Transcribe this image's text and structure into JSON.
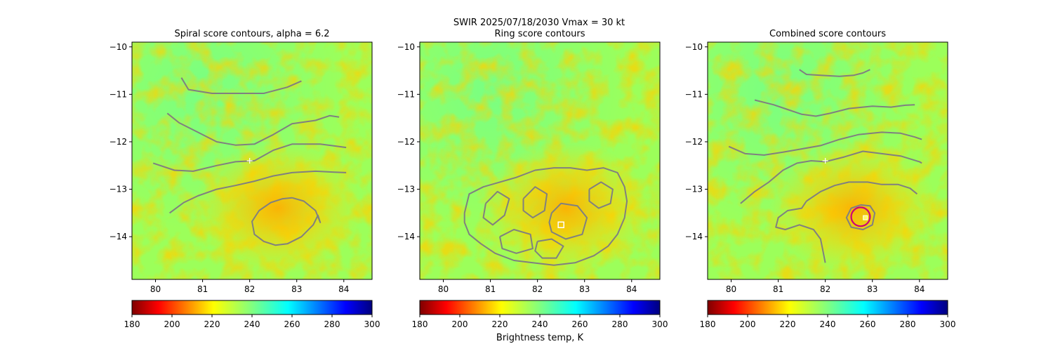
{
  "figure": {
    "suptitle_line1": "SWIR  2025/07/18/2030    Vmax = 30 kt",
    "colorbar_label": "Brightness temp, K"
  },
  "colors": {
    "contour": "#808080",
    "marker_white": "#ffffff",
    "ring_magenta": "#cc0077",
    "background_field": "#9cff5a"
  },
  "chart_data": [
    {
      "type": "heatmap",
      "title": "Spiral score contours, alpha =  6.2",
      "xlim": [
        79.5,
        84.6
      ],
      "ylim": [
        -14.9,
        -9.9
      ],
      "xticks": [
        80,
        81,
        82,
        83,
        84
      ],
      "yticks": [
        -10,
        -11,
        -12,
        -13,
        -14
      ],
      "colorbar": {
        "min": 180,
        "max": 300,
        "ticks": [
          180,
          200,
          220,
          240,
          260,
          280,
          300
        ],
        "colormap": "jet_r"
      },
      "center_marker": {
        "x": 82.0,
        "y": -12.4,
        "symbol": "+"
      },
      "contours": [
        [
          [
            80.55,
            -10.65
          ],
          [
            80.7,
            -10.9
          ],
          [
            81.2,
            -10.98
          ],
          [
            81.8,
            -10.98
          ],
          [
            82.3,
            -10.98
          ],
          [
            82.8,
            -10.85
          ],
          [
            83.1,
            -10.72
          ]
        ],
        [
          [
            80.25,
            -11.4
          ],
          [
            80.5,
            -11.6
          ],
          [
            80.9,
            -11.8
          ],
          [
            81.3,
            -12.0
          ],
          [
            81.7,
            -12.07
          ],
          [
            82.1,
            -12.05
          ],
          [
            82.5,
            -11.85
          ],
          [
            82.9,
            -11.62
          ],
          [
            83.4,
            -11.55
          ],
          [
            83.7,
            -11.45
          ],
          [
            83.9,
            -11.48
          ]
        ],
        [
          [
            79.95,
            -12.45
          ],
          [
            80.4,
            -12.6
          ],
          [
            80.8,
            -12.62
          ],
          [
            81.3,
            -12.5
          ],
          [
            81.7,
            -12.42
          ],
          [
            82.1,
            -12.4
          ],
          [
            82.5,
            -12.18
          ],
          [
            82.9,
            -12.05
          ],
          [
            83.5,
            -12.05
          ],
          [
            83.9,
            -12.1
          ],
          [
            84.05,
            -12.12
          ]
        ],
        [
          [
            80.3,
            -13.5
          ],
          [
            80.6,
            -13.28
          ],
          [
            80.9,
            -13.14
          ],
          [
            81.3,
            -13.0
          ],
          [
            81.7,
            -12.92
          ],
          [
            82.1,
            -12.83
          ],
          [
            82.5,
            -12.72
          ],
          [
            82.9,
            -12.65
          ],
          [
            83.4,
            -12.62
          ],
          [
            83.8,
            -12.64
          ],
          [
            84.05,
            -12.65
          ]
        ],
        [
          [
            82.9,
            -13.18
          ],
          [
            82.7,
            -13.2
          ],
          [
            82.45,
            -13.28
          ],
          [
            82.2,
            -13.45
          ],
          [
            82.05,
            -13.68
          ],
          [
            82.1,
            -13.95
          ],
          [
            82.3,
            -14.1
          ],
          [
            82.55,
            -14.18
          ],
          [
            82.8,
            -14.15
          ],
          [
            83.1,
            -14.0
          ],
          [
            83.35,
            -13.75
          ],
          [
            83.45,
            -13.55
          ],
          [
            83.5,
            -13.7
          ],
          [
            83.4,
            -13.45
          ],
          [
            83.15,
            -13.25
          ],
          [
            82.9,
            -13.18
          ]
        ]
      ]
    },
    {
      "type": "heatmap",
      "title": "Ring score contours",
      "xlim": [
        79.5,
        84.6
      ],
      "ylim": [
        -14.9,
        -9.9
      ],
      "xticks": [
        80,
        81,
        82,
        83,
        84
      ],
      "yticks": [
        -10,
        -11,
        -12,
        -13,
        -14
      ],
      "colorbar": {
        "min": 180,
        "max": 300,
        "ticks": [
          180,
          200,
          220,
          240,
          260,
          280,
          300
        ],
        "colormap": "jet_r"
      },
      "center_marker": {
        "x": 82.5,
        "y": -13.75,
        "symbol": "square"
      },
      "contours": [
        [
          [
            80.45,
            -13.5
          ],
          [
            80.55,
            -13.1
          ],
          [
            80.85,
            -12.95
          ],
          [
            81.2,
            -12.85
          ],
          [
            81.55,
            -12.75
          ],
          [
            81.95,
            -12.6
          ],
          [
            82.35,
            -12.55
          ],
          [
            82.7,
            -12.55
          ],
          [
            83.05,
            -12.6
          ],
          [
            83.4,
            -12.55
          ],
          [
            83.7,
            -12.65
          ],
          [
            83.85,
            -12.95
          ],
          [
            83.9,
            -13.25
          ],
          [
            83.85,
            -13.6
          ],
          [
            83.7,
            -13.95
          ],
          [
            83.5,
            -14.2
          ],
          [
            83.2,
            -14.4
          ],
          [
            82.8,
            -14.55
          ],
          [
            82.35,
            -14.6
          ],
          [
            81.9,
            -14.55
          ],
          [
            81.5,
            -14.5
          ],
          [
            81.1,
            -14.35
          ],
          [
            80.8,
            -14.15
          ],
          [
            80.55,
            -13.95
          ],
          [
            80.45,
            -13.7
          ],
          [
            80.45,
            -13.5
          ]
        ],
        [
          [
            80.9,
            -13.3
          ],
          [
            81.15,
            -13.05
          ],
          [
            81.4,
            -13.2
          ],
          [
            81.3,
            -13.55
          ],
          [
            81.05,
            -13.75
          ],
          [
            80.85,
            -13.6
          ],
          [
            80.9,
            -13.3
          ]
        ],
        [
          [
            81.7,
            -13.2
          ],
          [
            81.95,
            -12.95
          ],
          [
            82.2,
            -13.1
          ],
          [
            82.15,
            -13.45
          ],
          [
            81.9,
            -13.6
          ],
          [
            81.7,
            -13.45
          ],
          [
            81.7,
            -13.2
          ]
        ],
        [
          [
            82.3,
            -13.5
          ],
          [
            82.5,
            -13.3
          ],
          [
            82.85,
            -13.35
          ],
          [
            83.05,
            -13.6
          ],
          [
            82.95,
            -13.95
          ],
          [
            82.6,
            -14.05
          ],
          [
            82.3,
            -13.9
          ],
          [
            82.25,
            -13.7
          ],
          [
            82.3,
            -13.5
          ]
        ],
        [
          [
            83.1,
            -13.0
          ],
          [
            83.35,
            -12.85
          ],
          [
            83.6,
            -13.0
          ],
          [
            83.55,
            -13.3
          ],
          [
            83.3,
            -13.4
          ],
          [
            83.1,
            -13.25
          ],
          [
            83.1,
            -13.0
          ]
        ],
        [
          [
            81.2,
            -14.0
          ],
          [
            81.5,
            -13.85
          ],
          [
            81.85,
            -13.95
          ],
          [
            81.9,
            -14.25
          ],
          [
            81.55,
            -14.35
          ],
          [
            81.25,
            -14.25
          ],
          [
            81.2,
            -14.0
          ]
        ],
        [
          [
            82.0,
            -14.1
          ],
          [
            82.3,
            -14.05
          ],
          [
            82.55,
            -14.2
          ],
          [
            82.4,
            -14.45
          ],
          [
            82.1,
            -14.45
          ],
          [
            81.95,
            -14.3
          ],
          [
            82.0,
            -14.1
          ]
        ]
      ]
    },
    {
      "type": "heatmap",
      "title": "Combined score contours",
      "xlim": [
        79.5,
        84.6
      ],
      "ylim": [
        -14.9,
        -9.9
      ],
      "xticks": [
        80,
        81,
        82,
        83,
        84
      ],
      "yticks": [
        -10,
        -11,
        -12,
        -13,
        -14
      ],
      "colorbar": {
        "min": 180,
        "max": 300,
        "ticks": [
          180,
          200,
          220,
          240,
          260,
          280,
          300
        ],
        "colormap": "jet_r"
      },
      "center_marker": {
        "x": 82.0,
        "y": -12.4,
        "symbol": "+"
      },
      "best_point": {
        "x": 82.85,
        "y": -13.6,
        "symbol": "square"
      },
      "ring": {
        "x": 82.75,
        "y": -13.58,
        "radius_deg": 0.2
      },
      "contours": [
        [
          [
            81.45,
            -10.48
          ],
          [
            81.6,
            -10.58
          ],
          [
            81.9,
            -10.6
          ],
          [
            82.3,
            -10.62
          ],
          [
            82.6,
            -10.6
          ],
          [
            82.8,
            -10.55
          ],
          [
            82.95,
            -10.48
          ]
        ],
        [
          [
            80.5,
            -11.12
          ],
          [
            80.9,
            -11.22
          ],
          [
            81.2,
            -11.32
          ],
          [
            81.5,
            -11.42
          ],
          [
            81.8,
            -11.46
          ],
          [
            82.1,
            -11.4
          ],
          [
            82.5,
            -11.3
          ],
          [
            83.0,
            -11.25
          ],
          [
            83.4,
            -11.27
          ],
          [
            83.7,
            -11.23
          ],
          [
            83.9,
            -11.22
          ]
        ],
        [
          [
            79.95,
            -12.1
          ],
          [
            80.3,
            -12.25
          ],
          [
            80.7,
            -12.28
          ],
          [
            81.1,
            -12.22
          ],
          [
            81.5,
            -12.15
          ],
          [
            81.9,
            -12.08
          ],
          [
            82.3,
            -11.95
          ],
          [
            82.7,
            -11.85
          ],
          [
            83.2,
            -11.8
          ],
          [
            83.6,
            -11.82
          ],
          [
            83.9,
            -11.9
          ],
          [
            84.05,
            -11.95
          ]
        ],
        [
          [
            80.2,
            -13.3
          ],
          [
            80.5,
            -13.05
          ],
          [
            80.8,
            -12.85
          ],
          [
            81.1,
            -12.6
          ],
          [
            81.4,
            -12.45
          ],
          [
            81.7,
            -12.4
          ],
          [
            82.0,
            -12.42
          ],
          [
            82.4,
            -12.32
          ],
          [
            82.8,
            -12.2
          ],
          [
            83.2,
            -12.25
          ],
          [
            83.6,
            -12.3
          ],
          [
            84.0,
            -12.42
          ],
          [
            84.05,
            -12.45
          ]
        ],
        [
          [
            81.6,
            -13.25
          ],
          [
            81.9,
            -13.05
          ],
          [
            82.2,
            -12.92
          ],
          [
            82.5,
            -12.85
          ],
          [
            82.9,
            -12.85
          ],
          [
            83.2,
            -12.9
          ],
          [
            83.55,
            -12.9
          ],
          [
            83.8,
            -12.98
          ],
          [
            83.95,
            -13.1
          ]
        ],
        [
          [
            81.6,
            -13.25
          ],
          [
            81.5,
            -13.4
          ],
          [
            81.2,
            -13.45
          ],
          [
            81.0,
            -13.6
          ],
          [
            80.95,
            -13.8
          ],
          [
            81.15,
            -13.85
          ],
          [
            81.45,
            -13.75
          ],
          [
            81.75,
            -13.85
          ],
          [
            81.9,
            -14.05
          ],
          [
            81.95,
            -14.3
          ],
          [
            82.0,
            -14.55
          ]
        ],
        [
          [
            82.75,
            -13.33
          ],
          [
            82.95,
            -13.35
          ],
          [
            83.05,
            -13.5
          ],
          [
            83.0,
            -13.75
          ],
          [
            82.8,
            -13.85
          ],
          [
            82.55,
            -13.8
          ],
          [
            82.45,
            -13.6
          ],
          [
            82.55,
            -13.4
          ],
          [
            82.75,
            -13.33
          ]
        ]
      ]
    }
  ]
}
